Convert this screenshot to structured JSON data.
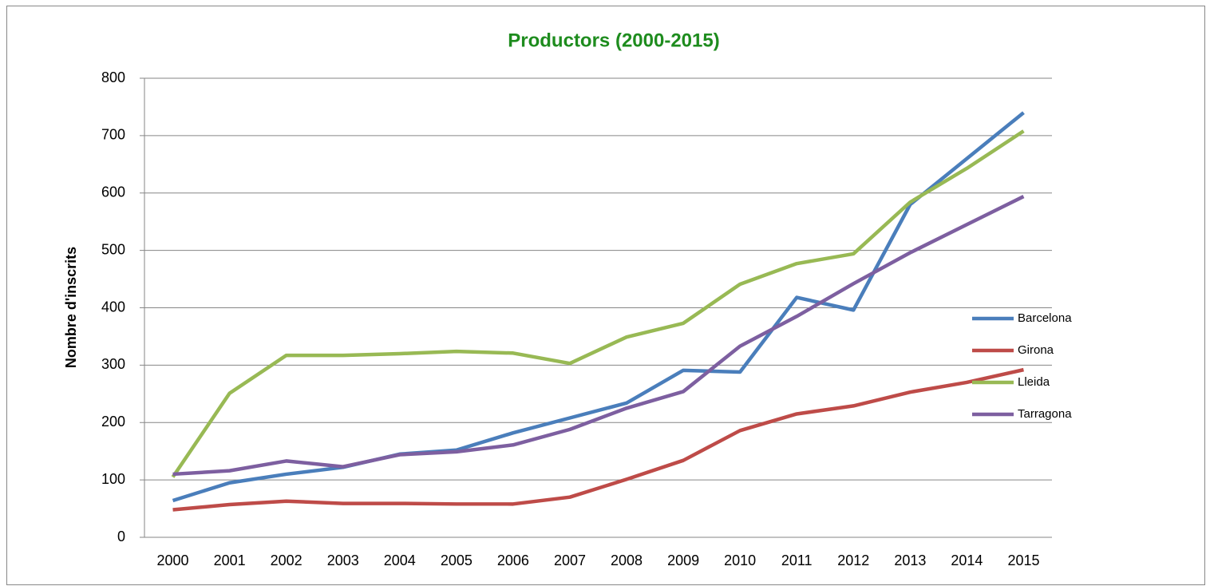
{
  "chart_data": {
    "type": "line",
    "title": "Productors (2000-2015)",
    "y_label": "Nombre d'inscrits",
    "categories": [
      "2000",
      "2001",
      "2002",
      "2003",
      "2004",
      "2005",
      "2006",
      "2007",
      "2008",
      "2009",
      "2010",
      "2011",
      "2012",
      "2013",
      "2014",
      "2015"
    ],
    "series": [
      {
        "name": "Barcelona",
        "color": "#4a7ebb",
        "values": [
          64,
          95,
          110,
          122,
          145,
          152,
          182,
          208,
          234,
          291,
          288,
          418,
          396,
          580,
          660,
          740
        ]
      },
      {
        "name": "Girona",
        "color": "#be4b48",
        "values": [
          48,
          57,
          63,
          59,
          59,
          58,
          58,
          70,
          101,
          134,
          186,
          215,
          229,
          253,
          270,
          292
        ]
      },
      {
        "name": "Lleida",
        "color": "#98b954",
        "values": [
          105,
          251,
          317,
          317,
          320,
          324,
          321,
          303,
          349,
          373,
          441,
          477,
          494,
          584,
          643,
          708
        ]
      },
      {
        "name": "Tarragona",
        "color": "#7d5fa0",
        "values": [
          110,
          116,
          133,
          123,
          144,
          149,
          161,
          188,
          225,
          254,
          333,
          385,
          442,
          496,
          545,
          594
        ]
      }
    ],
    "ylim": [
      0,
      800
    ],
    "yticks": [
      0,
      100,
      200,
      300,
      400,
      500,
      600,
      700,
      800
    ],
    "grid": true,
    "legend": "right"
  }
}
